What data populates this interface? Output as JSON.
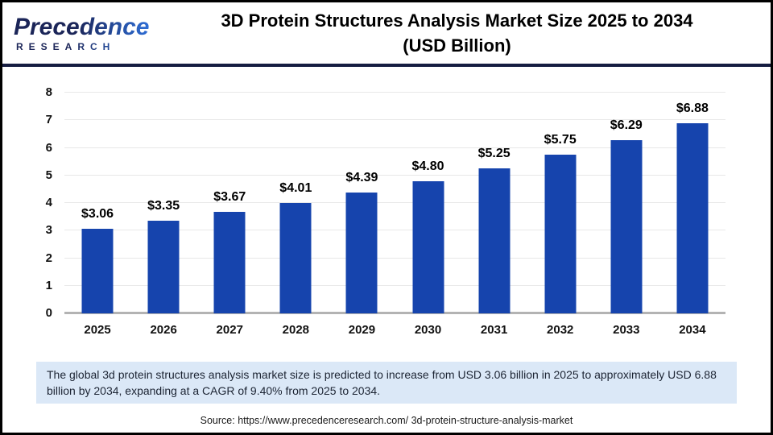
{
  "header": {
    "logo_word1": "Precedence",
    "logo_word2": "RESEARCH",
    "title_line1": "3D Protein Structures Analysis Market Size 2025 to 2034",
    "title_line2": "(USD Billion)"
  },
  "chart_data": {
    "type": "bar",
    "title": "3D Protein Structures Analysis Market Size 2025 to 2034 (USD Billion)",
    "categories": [
      "2025",
      "2026",
      "2027",
      "2028",
      "2029",
      "2030",
      "2031",
      "2032",
      "2033",
      "2034"
    ],
    "values": [
      3.06,
      3.35,
      3.67,
      4.01,
      4.39,
      4.8,
      5.25,
      5.75,
      6.29,
      6.88
    ],
    "display_values": [
      "$3.06",
      "$3.35",
      "$3.67",
      "$4.01",
      "$4.39",
      "$4.80",
      "$5.25",
      "$5.75",
      "$6.29",
      "$6.88"
    ],
    "xlabel": "",
    "ylabel": "",
    "ylim": [
      0,
      8
    ],
    "ytick_step": 1,
    "grid": true,
    "legend": "none",
    "bar_color": "#1644ad"
  },
  "note": {
    "text": "The global 3d protein structures analysis market size is predicted to increase from USD 3.06 billion in 2025 to approximately USD 6.88 billion by 2034, expanding at a CAGR of 9.40% from 2025 to 2034."
  },
  "source": {
    "text": "Source: https://www.precedenceresearch.com/ 3d-protein-structure-analysis-market"
  },
  "colors": {
    "bar": "#1644ad",
    "header_divider": "#161d41",
    "note_background": "#dbe8f7",
    "gridline": "#e8e8e8",
    "axis_line": "#b3b3b3"
  }
}
